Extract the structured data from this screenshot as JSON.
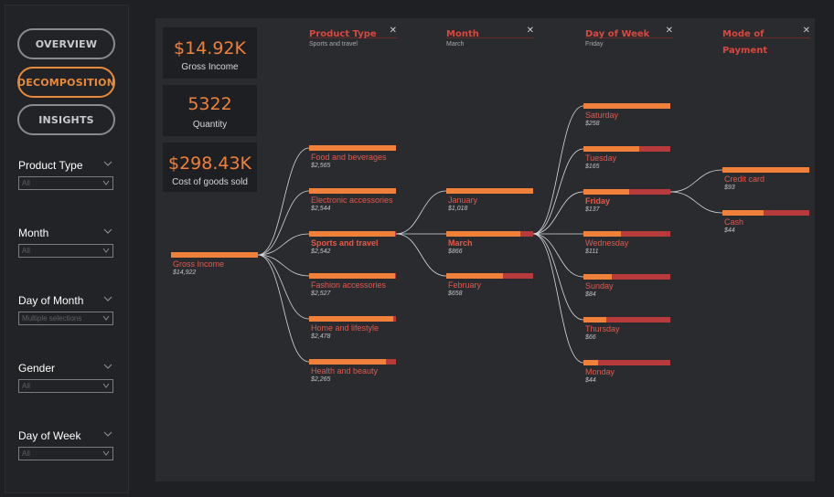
{
  "nav": {
    "overview": "OVERVIEW",
    "decomposition": "DECOMPOSITION",
    "insights": "INSIGHTS"
  },
  "slicers": [
    {
      "label": "Product Type",
      "value": "All"
    },
    {
      "label": "Month",
      "value": "All"
    },
    {
      "label": "Day of Month",
      "value": "Multiple selections"
    },
    {
      "label": "Gender",
      "value": "All"
    },
    {
      "label": "Day of Week",
      "value": "All"
    }
  ],
  "kpis": [
    {
      "value": "$14.92K",
      "label": "Gross Income"
    },
    {
      "value": "5322",
      "label": "Quantity"
    },
    {
      "value": "$298.43K",
      "label": "Cost of goods sold"
    }
  ],
  "levels": [
    {
      "title": "Product Type",
      "selection": "Sports and travel"
    },
    {
      "title": "Month",
      "selection": "March"
    },
    {
      "title": "Day of Week",
      "selection": "Friday"
    },
    {
      "title": "Mode of Payment",
      "selection": ""
    }
  ],
  "close_glyph": "✕",
  "colors": {
    "accent": "#f0813a",
    "bar_remainder": "#b83b3b",
    "label": "#e05a4e",
    "panel": "#2a2b2f"
  },
  "tree": {
    "root": {
      "label": "Gross Income",
      "value": "$14,922",
      "fill": 1.0
    },
    "product_types": [
      {
        "label": "Food and beverages",
        "value": "$2,565",
        "fill": 1.0
      },
      {
        "label": "Electronic accessories",
        "value": "$2,544",
        "fill": 1.0
      },
      {
        "label": "Sports and travel",
        "value": "$2,542",
        "fill": 0.99,
        "selected": true
      },
      {
        "label": "Fashion accessories",
        "value": "$2,527",
        "fill": 0.99
      },
      {
        "label": "Home and lifestyle",
        "value": "$2,478",
        "fill": 0.97
      },
      {
        "label": "Health and beauty",
        "value": "$2,265",
        "fill": 0.88
      }
    ],
    "months": [
      {
        "label": "January",
        "value": "$1,018",
        "fill": 1.0
      },
      {
        "label": "March",
        "value": "$866",
        "fill": 0.85,
        "selected": true
      },
      {
        "label": "February",
        "value": "$658",
        "fill": 0.65
      }
    ],
    "days": [
      {
        "label": "Saturday",
        "value": "$258",
        "fill": 1.0
      },
      {
        "label": "Tuesday",
        "value": "$165",
        "fill": 0.64
      },
      {
        "label": "Friday",
        "value": "$137",
        "fill": 0.53,
        "selected": true
      },
      {
        "label": "Wednesday",
        "value": "$111",
        "fill": 0.43
      },
      {
        "label": "Sunday",
        "value": "$84",
        "fill": 0.33
      },
      {
        "label": "Thursday",
        "value": "$66",
        "fill": 0.26
      },
      {
        "label": "Monday",
        "value": "$44",
        "fill": 0.17
      }
    ],
    "payments": [
      {
        "label": "Credit card",
        "value": "$93",
        "fill": 1.0
      },
      {
        "label": "Cash",
        "value": "$44",
        "fill": 0.47
      }
    ]
  }
}
